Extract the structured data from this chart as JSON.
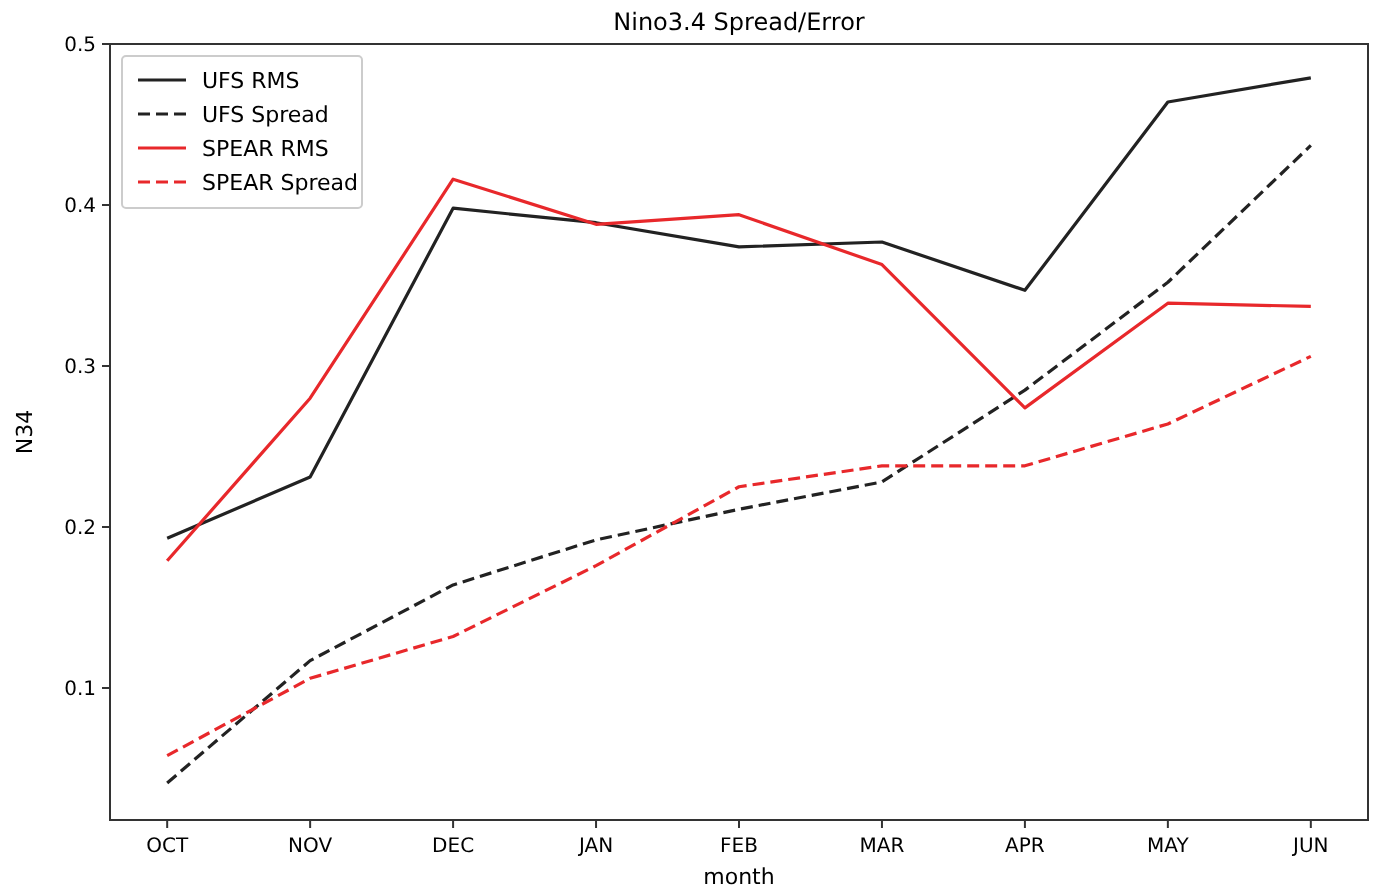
{
  "chart_data": {
    "type": "line",
    "title": "Nino3.4 Spread/Error",
    "xlabel": "month",
    "ylabel": "N34",
    "categories": [
      "OCT",
      "NOV",
      "DEC",
      "JAN",
      "FEB",
      "MAR",
      "APR",
      "MAY",
      "JUN"
    ],
    "ylim": [
      0.018,
      0.5
    ],
    "yticks": [
      0.1,
      0.2,
      0.3,
      0.4,
      0.5
    ],
    "grid": false,
    "legend": "top left",
    "series": [
      {
        "name": "UFS RMS",
        "color": "#222222",
        "line_style": "solid",
        "values": [
          0.193,
          0.231,
          0.398,
          0.389,
          0.374,
          0.377,
          0.347,
          0.464,
          0.479
        ]
      },
      {
        "name": "UFS Spread",
        "color": "#222222",
        "line_style": "dashed",
        "values": [
          0.041,
          0.117,
          0.164,
          0.192,
          0.211,
          0.228,
          0.285,
          0.352,
          0.437
        ]
      },
      {
        "name": "SPEAR RMS",
        "color": "#e8282b",
        "line_style": "solid",
        "values": [
          0.179,
          0.28,
          0.416,
          0.388,
          0.394,
          0.363,
          0.274,
          0.339,
          0.337
        ]
      },
      {
        "name": "SPEAR Spread",
        "color": "#e8282b",
        "line_style": "dashed",
        "values": [
          0.058,
          0.106,
          0.132,
          0.176,
          0.225,
          0.238,
          0.238,
          0.264,
          0.306
        ]
      }
    ]
  }
}
